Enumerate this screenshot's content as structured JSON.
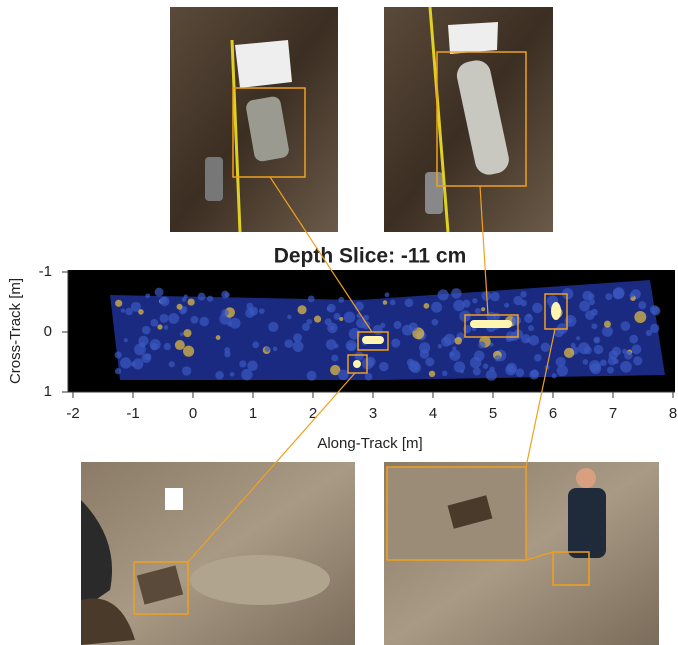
{
  "chart_data": {
    "type": "image",
    "title": "Depth Slice: -11 cm",
    "xlabel": "Along-Track [m]",
    "ylabel": "Cross-Track [m]",
    "xlim": [
      -2,
      8
    ],
    "xticks": [
      -2,
      -1,
      0,
      1,
      2,
      3,
      4,
      5,
      6,
      7,
      8
    ],
    "ylim": [
      1,
      -1
    ],
    "yticks": [
      -1,
      0,
      1
    ]
  }
}
